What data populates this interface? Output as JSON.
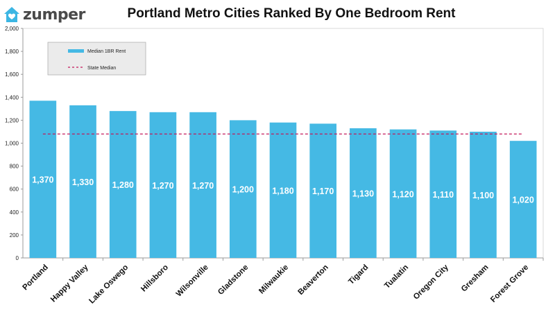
{
  "logo": {
    "text": "zumper",
    "icon": "house-heart-icon",
    "color": "#3cb6e3"
  },
  "chart_data": {
    "type": "bar",
    "title": "Portland Metro Cities Ranked By One Bedroom Rent",
    "categories": [
      "Portland",
      "Happy Valley",
      "Lake Oswego",
      "Hillsboro",
      "Wilsonville",
      "Gladstone",
      "Milwaukie",
      "Beaverton",
      "Tigard",
      "Tualatin",
      "Oregon City",
      "Gresham",
      "Forest Grove"
    ],
    "series": [
      {
        "name": "Median 1BR Rent",
        "type": "bar",
        "color": "#45b9e4",
        "values": [
          1370,
          1330,
          1280,
          1270,
          1270,
          1200,
          1180,
          1170,
          1130,
          1120,
          1110,
          1100,
          1020
        ],
        "labels": [
          "1,370",
          "1,330",
          "1,280",
          "1,270",
          "1,270",
          "1,200",
          "1,180",
          "1,170",
          "1,130",
          "1,120",
          "1,110",
          "1,100",
          "1,020"
        ]
      },
      {
        "name": "State Median",
        "type": "line",
        "style": "dashed",
        "color": "#c2185b",
        "value": 1080
      }
    ],
    "ylim": [
      0,
      2000
    ],
    "yticks": [
      0,
      200,
      400,
      600,
      800,
      1000,
      1200,
      1400,
      1600,
      1800,
      2000
    ],
    "ytick_labels": [
      "0",
      "200",
      "400",
      "600",
      "800",
      "1,000",
      "1,200",
      "1,400",
      "1,600",
      "1,800",
      "2,000"
    ],
    "xlabel": "",
    "ylabel": "",
    "grid": false,
    "legend_position": "top-left"
  }
}
